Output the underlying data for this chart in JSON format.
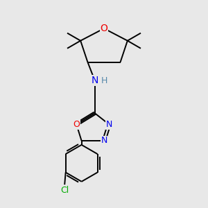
{
  "bg_color": "#e8e8e8",
  "atom_colors": {
    "C": "#000000",
    "N": "#0000ee",
    "O": "#ee0000",
    "Cl": "#00aa00",
    "H": "#5588aa"
  },
  "bond_color": "#000000",
  "bond_width": 1.4,
  "font_size": 9,
  "xlim": [
    0,
    10
  ],
  "ylim": [
    0,
    10
  ]
}
